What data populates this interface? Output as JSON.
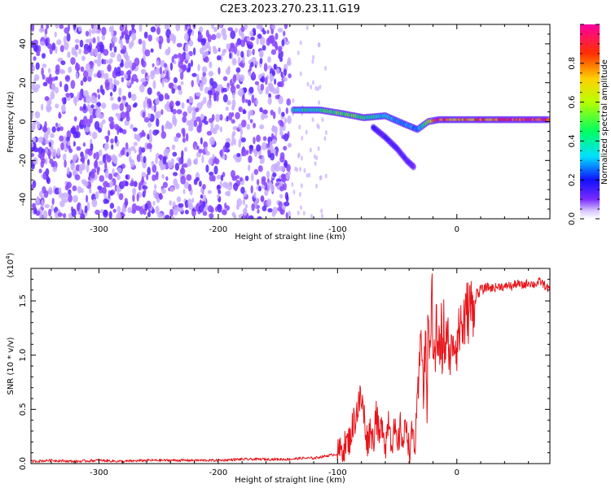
{
  "title": "C2E3.2023.270.23.11.G19",
  "colors": {
    "snr_line": "#e8141a",
    "axis": "#000000"
  },
  "chart_data": [
    {
      "type": "heatmap",
      "xlabel": "Height of straight line (km)",
      "ylabel": "Frequency (Hz)",
      "xlim": [
        -357,
        78
      ],
      "ylim": [
        -50,
        50
      ],
      "xticks": [
        -300,
        -200,
        -100,
        0
      ],
      "yticks": [
        -40,
        -20,
        0,
        20,
        40
      ],
      "grid": false,
      "noise_region": {
        "x": [
          -357,
          -140
        ],
        "y": [
          -50,
          50
        ],
        "amplitude": 0.15
      },
      "traces": [
        {
          "x": [
            -137,
            -115,
            -95,
            -78,
            -60,
            -45,
            -33,
            -24,
            -15,
            -5,
            10,
            40,
            78
          ],
          "y": [
            6,
            6,
            4,
            2,
            3,
            -1,
            -4,
            0,
            1,
            1,
            1,
            1,
            1
          ],
          "amplitude": [
            0.35,
            0.45,
            0.5,
            0.45,
            0.35,
            0.3,
            0.25,
            0.6,
            0.9,
            0.7,
            0.75,
            0.85,
            0.9
          ]
        },
        {
          "x": [
            -70,
            -60,
            -50,
            -42,
            -35
          ],
          "y": [
            -3,
            -8,
            -14,
            -20,
            -24
          ],
          "amplitude": [
            0.2,
            0.15,
            0.15,
            0.15,
            0.1
          ]
        }
      ],
      "colorbar": {
        "label": "Normalized spectral amplitude",
        "range": [
          0,
          1
        ],
        "ticks": [
          0.0,
          0.2,
          0.4,
          0.6,
          0.8
        ]
      }
    },
    {
      "type": "line",
      "xlabel": "Height of straight line (km)",
      "ylabel": "SNR (10 * v/v)",
      "yunit": "(x10",
      "yunit_exp": "4",
      "yunit_close": ")",
      "xlim": [
        -357,
        78
      ],
      "ylim": [
        0,
        1.8
      ],
      "xticks": [
        -300,
        -200,
        -100,
        0
      ],
      "yticks": [
        0.0,
        0.5,
        1.0,
        1.5
      ],
      "grid": false,
      "series": [
        {
          "x": [
            -357,
            -340,
            -320,
            -300,
            -280,
            -260,
            -240,
            -220,
            -200,
            -180,
            -160,
            -140,
            -130,
            -120,
            -110,
            -105,
            -100,
            -95,
            -90,
            -85,
            -82,
            -80,
            -78,
            -75,
            -72,
            -70,
            -68,
            -65,
            -62,
            -60,
            -57,
            -55,
            -52,
            -50,
            -47,
            -45,
            -42,
            -40,
            -37,
            -35,
            -33,
            -31,
            -30,
            -28,
            -26,
            -25,
            -24,
            -23,
            -22,
            -21,
            -20,
            -19,
            -18,
            -17,
            -16,
            -15,
            -14,
            -13,
            -12,
            -11,
            -10,
            -9,
            -8,
            -7,
            -6,
            -5,
            -4,
            -3,
            -2,
            -1,
            0,
            1,
            2,
            3,
            4,
            5,
            6,
            7,
            8,
            9,
            10,
            11,
            12,
            13,
            14,
            15,
            16,
            17,
            18,
            20,
            22,
            25,
            28,
            31,
            34,
            37,
            40,
            43,
            46,
            50,
            55,
            60,
            65,
            70,
            75,
            78
          ],
          "y": [
            0.02,
            0.03,
            0.02,
            0.03,
            0.02,
            0.03,
            0.03,
            0.03,
            0.03,
            0.04,
            0.04,
            0.04,
            0.05,
            0.05,
            0.07,
            0.08,
            0.09,
            0.15,
            0.22,
            0.45,
            0.55,
            0.6,
            0.45,
            0.2,
            0.35,
            0.18,
            0.5,
            0.22,
            0.4,
            0.15,
            0.45,
            0.2,
            0.3,
            0.12,
            0.35,
            0.18,
            0.4,
            0.1,
            0.3,
            0.15,
            0.55,
            0.9,
            1.45,
            0.6,
            1.25,
            0.3,
            1.6,
            0.8,
            1.3,
            1.75,
            0.9,
            1.3,
            1.0,
            1.4,
            0.95,
            1.2,
            0.9,
            1.25,
            0.9,
            1.3,
            1.0,
            1.15,
            1.05,
            1.2,
            0.95,
            1.1,
            1.0,
            1.25,
            1.05,
            1.15,
            1.1,
            1.25,
            1.15,
            1.35,
            1.3,
            1.2,
            1.35,
            1.3,
            1.4,
            1.45,
            1.35,
            1.5,
            1.45,
            1.38,
            1.5,
            1.45,
            1.55,
            1.6,
            1.55,
            1.62,
            1.6,
            1.63,
            1.62,
            1.62,
            1.63,
            1.64,
            1.62,
            1.65,
            1.63,
            1.66,
            1.64,
            1.67,
            1.65,
            1.68,
            1.63,
            1.6
          ]
        }
      ]
    }
  ]
}
